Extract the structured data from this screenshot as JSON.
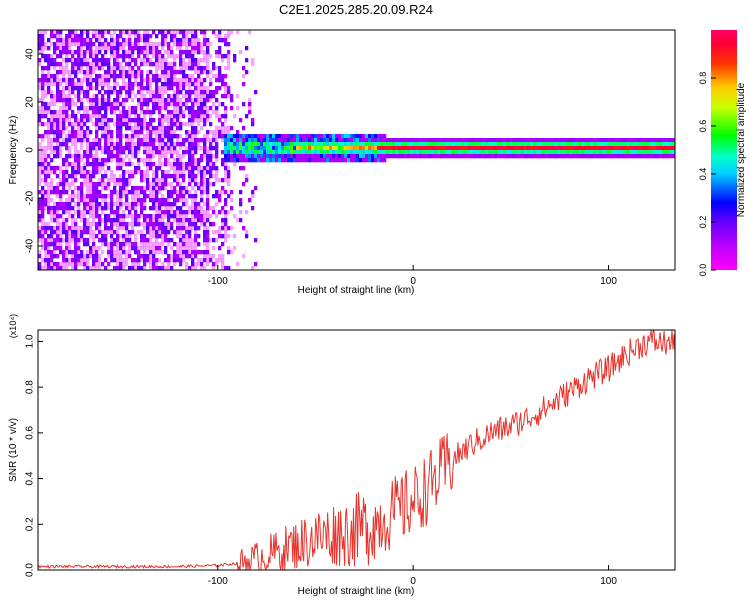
{
  "title": "C2E1.2025.285.20.09.R24",
  "colors": {
    "snr_line": "#e8332c",
    "colorbar": [
      "#ff00ff",
      "#0000ff",
      "#00ffff",
      "#00ff00",
      "#ffff00",
      "#ff0000"
    ]
  },
  "chart_data": [
    {
      "type": "heatmap",
      "title": "C2E1.2025.285.20.09.R24",
      "xlabel": "Height of straight line (km)",
      "ylabel": "Frequency (Hz)",
      "xlim": [
        -192,
        134
      ],
      "ylim": [
        -50,
        50
      ],
      "xticks": [
        -100,
        0,
        100
      ],
      "yticks": [
        -40,
        -20,
        0,
        20,
        40
      ],
      "colorbar": {
        "label": "Normalized spectral amplitude",
        "range": [
          0,
          1
        ],
        "ticks": [
          "0.0",
          "0.2",
          "0.4",
          "0.6",
          "0.8"
        ]
      },
      "features": {
        "noise_region_x": [
          -192,
          -80
        ],
        "signal_line_freq_hz": 2,
        "signal_start_x": -97,
        "peak_band_x": [
          -20,
          100
        ]
      }
    },
    {
      "type": "line",
      "xlabel": "Height of straight line (km)",
      "ylabel": "SNR (10 * v/v)",
      "yscale_note": "(x10⁴)",
      "xlim": [
        -192,
        134
      ],
      "ylim": [
        0,
        1.05
      ],
      "xticks": [
        -100,
        0,
        100
      ],
      "yticks": [
        0.0,
        0.2,
        0.4,
        0.6,
        0.8,
        1.0
      ],
      "series": [
        {
          "x": [
            -192,
            -180,
            -160,
            -140,
            -120,
            -100,
            -90,
            -80,
            -70,
            -60,
            -50,
            -40,
            -30,
            -20,
            -10,
            0,
            10,
            20,
            30,
            40,
            50,
            60,
            70,
            80,
            90,
            100,
            110,
            120,
            134
          ],
          "y": [
            0.015,
            0.015,
            0.015,
            0.015,
            0.015,
            0.02,
            0.03,
            0.05,
            0.08,
            0.11,
            0.14,
            0.16,
            0.17,
            0.2,
            0.25,
            0.3,
            0.38,
            0.48,
            0.55,
            0.6,
            0.63,
            0.67,
            0.72,
            0.78,
            0.84,
            0.88,
            0.95,
            1.0,
            0.99
          ]
        }
      ]
    }
  ]
}
